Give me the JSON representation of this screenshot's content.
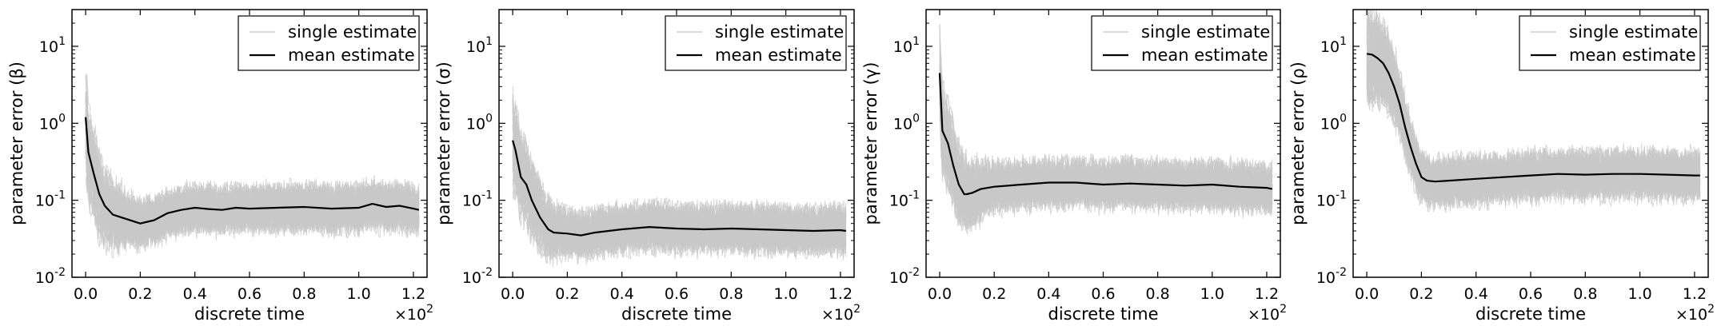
{
  "chart_data": [
    {
      "type": "line",
      "xlabel": "discrete time",
      "ylabel": "parameter error (β)",
      "x_multiplier": "×10",
      "x_multiplier_exp": "2",
      "xlim": [
        -0.05,
        1.25
      ],
      "xticks": [
        "0.0",
        "0.2",
        "0.4",
        "0.6",
        "0.8",
        "1.0",
        "1.2"
      ],
      "yscale": "log",
      "ylim": [
        0.01,
        30
      ],
      "yticks": [
        {
          "base": "10",
          "exp": "-2"
        },
        {
          "base": "10",
          "exp": "-1"
        },
        {
          "base": "10",
          "exp": "0"
        },
        {
          "base": "10",
          "exp": "1"
        }
      ],
      "legend": {
        "position": "top-right",
        "entries": [
          "single estimate",
          "mean estimate"
        ]
      },
      "series": [
        {
          "name": "single estimate",
          "color": "#c8c8c8",
          "count": 100,
          "band_low": 0.045,
          "band_high": 0.16
        },
        {
          "name": "mean estimate",
          "color": "#000000",
          "x": [
            0.0,
            0.01,
            0.03,
            0.05,
            0.07,
            0.1,
            0.15,
            0.2,
            0.22,
            0.25,
            0.3,
            0.35,
            0.4,
            0.45,
            0.5,
            0.55,
            0.6,
            0.7,
            0.8,
            0.9,
            1.0,
            1.05,
            1.1,
            1.15,
            1.2,
            1.22
          ],
          "values": [
            1.2,
            0.42,
            0.22,
            0.12,
            0.085,
            0.065,
            0.057,
            0.05,
            0.052,
            0.055,
            0.068,
            0.075,
            0.08,
            0.077,
            0.075,
            0.08,
            0.078,
            0.08,
            0.082,
            0.078,
            0.08,
            0.09,
            0.082,
            0.085,
            0.078,
            0.075
          ]
        }
      ]
    },
    {
      "type": "line",
      "xlabel": "discrete time",
      "ylabel": "parameter error (σ)",
      "x_multiplier": "×10",
      "x_multiplier_exp": "2",
      "xlim": [
        -0.05,
        1.25
      ],
      "xticks": [
        "0.0",
        "0.2",
        "0.4",
        "0.6",
        "0.8",
        "1.0",
        "1.2"
      ],
      "yscale": "log",
      "ylim": [
        0.01,
        30
      ],
      "yticks": [
        {
          "base": "10",
          "exp": "-2"
        },
        {
          "base": "10",
          "exp": "-1"
        },
        {
          "base": "10",
          "exp": "0"
        },
        {
          "base": "10",
          "exp": "1"
        }
      ],
      "legend": {
        "position": "top-right",
        "entries": [
          "single estimate",
          "mean estimate"
        ]
      },
      "series": [
        {
          "name": "single estimate",
          "color": "#c8c8c8",
          "count": 100,
          "band_low": 0.022,
          "band_high": 0.07
        },
        {
          "name": "mean estimate",
          "color": "#000000",
          "x": [
            0.0,
            0.01,
            0.03,
            0.05,
            0.07,
            0.1,
            0.13,
            0.15,
            0.2,
            0.25,
            0.3,
            0.4,
            0.5,
            0.6,
            0.7,
            0.8,
            0.9,
            1.0,
            1.1,
            1.2,
            1.22
          ],
          "values": [
            0.6,
            0.45,
            0.2,
            0.16,
            0.1,
            0.06,
            0.042,
            0.038,
            0.037,
            0.035,
            0.038,
            0.042,
            0.045,
            0.043,
            0.042,
            0.043,
            0.042,
            0.041,
            0.04,
            0.041,
            0.04
          ]
        }
      ]
    },
    {
      "type": "line",
      "xlabel": "discrete time",
      "ylabel": "parameter error (γ)",
      "x_multiplier": "×10",
      "x_multiplier_exp": "2",
      "xlim": [
        -0.05,
        1.25
      ],
      "xticks": [
        "0.0",
        "0.2",
        "0.4",
        "0.6",
        "0.8",
        "1.0",
        "1.2"
      ],
      "yscale": "log",
      "ylim": [
        0.01,
        30
      ],
      "yticks": [
        {
          "base": "10",
          "exp": "-2"
        },
        {
          "base": "10",
          "exp": "-1"
        },
        {
          "base": "10",
          "exp": "0"
        },
        {
          "base": "10",
          "exp": "1"
        }
      ],
      "legend": {
        "position": "top-right",
        "entries": [
          "single estimate",
          "mean estimate"
        ]
      },
      "series": [
        {
          "name": "single estimate",
          "color": "#c8c8c8",
          "count": 100,
          "band_low": 0.09,
          "band_high": 0.28
        },
        {
          "name": "mean estimate",
          "color": "#000000",
          "x": [
            0.0,
            0.01,
            0.03,
            0.05,
            0.07,
            0.09,
            0.1,
            0.12,
            0.15,
            0.2,
            0.3,
            0.4,
            0.5,
            0.6,
            0.7,
            0.8,
            0.9,
            1.0,
            1.1,
            1.2,
            1.22
          ],
          "values": [
            4.5,
            0.8,
            0.55,
            0.28,
            0.16,
            0.12,
            0.12,
            0.125,
            0.14,
            0.15,
            0.16,
            0.17,
            0.17,
            0.16,
            0.165,
            0.16,
            0.155,
            0.16,
            0.15,
            0.145,
            0.14
          ]
        }
      ]
    },
    {
      "type": "line",
      "xlabel": "discrete time",
      "ylabel": "parameter error (ρ)",
      "x_multiplier": "×10",
      "x_multiplier_exp": "2",
      "xlim": [
        -0.05,
        1.25
      ],
      "xticks": [
        "0.0",
        "0.2",
        "0.4",
        "0.6",
        "0.8",
        "1.0",
        "1.2"
      ],
      "yscale": "log",
      "ylim": [
        0.01,
        30
      ],
      "yticks": [
        {
          "base": "10",
          "exp": "-2"
        },
        {
          "base": "10",
          "exp": "-1"
        },
        {
          "base": "10",
          "exp": "0"
        },
        {
          "base": "10",
          "exp": "1"
        }
      ],
      "legend": {
        "position": "top-right",
        "entries": [
          "single estimate",
          "mean estimate"
        ]
      },
      "series": [
        {
          "name": "single estimate",
          "color": "#c8c8c8",
          "count": 100,
          "band_low": 0.12,
          "band_high": 0.38
        },
        {
          "name": "mean estimate",
          "color": "#000000",
          "x": [
            0.0,
            0.02,
            0.04,
            0.06,
            0.08,
            0.1,
            0.12,
            0.14,
            0.16,
            0.18,
            0.2,
            0.22,
            0.25,
            0.3,
            0.4,
            0.5,
            0.6,
            0.7,
            0.8,
            0.9,
            1.0,
            1.1,
            1.2,
            1.22
          ],
          "values": [
            8.0,
            7.8,
            7.0,
            6.0,
            4.5,
            3.0,
            1.8,
            0.9,
            0.5,
            0.3,
            0.2,
            0.18,
            0.175,
            0.18,
            0.19,
            0.2,
            0.21,
            0.22,
            0.215,
            0.22,
            0.22,
            0.215,
            0.21,
            0.21
          ]
        }
      ]
    }
  ]
}
